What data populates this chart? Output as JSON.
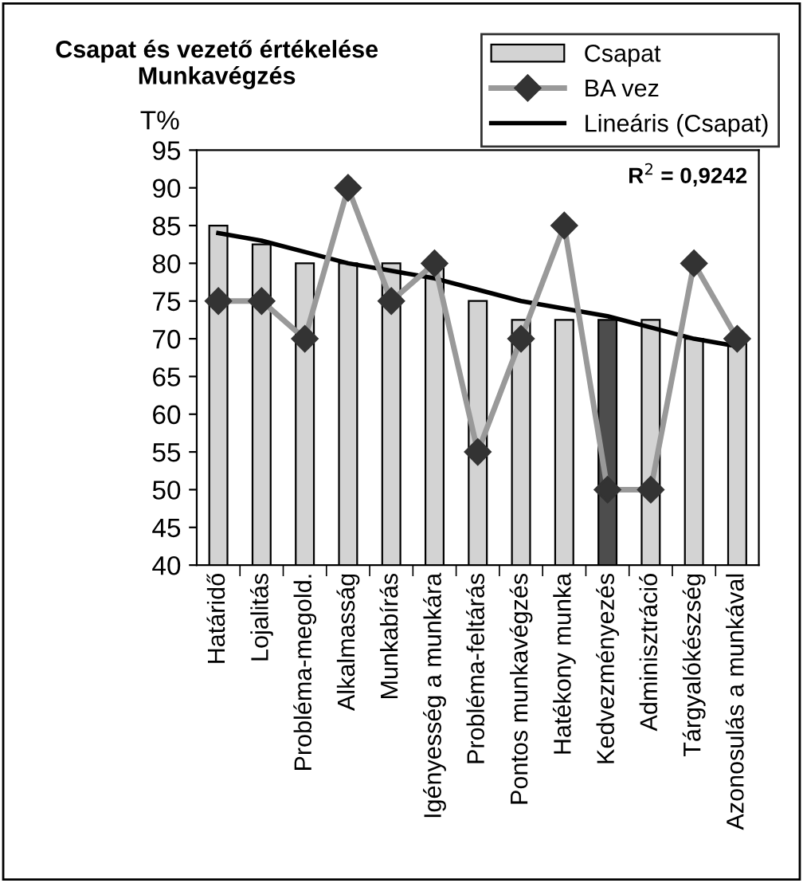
{
  "chart_data": {
    "type": "bar",
    "title": "Csapat és vezető értékelése\nMunkavégzés",
    "ylabel": "T%",
    "categories": [
      "Határidő",
      "Lojalitás",
      "Probléma-megold.",
      "Alkalmasság",
      "Munkabírás",
      "Igényesség a munkára",
      "Probléma-feltárás",
      "Pontos munkavégzés",
      "Hatékony munka",
      "Kedvezményezés",
      "Adminisztráció",
      "Tárgyalókészség",
      "Azonosulás a munkával"
    ],
    "series": [
      {
        "name": "Csapat",
        "colors": [
          "#d3d3d3",
          "#d3d3d3",
          "#d3d3d3",
          "#d3d3d3",
          "#d3d3d3",
          "#d3d3d3",
          "#d3d3d3",
          "#d3d3d3",
          "#d3d3d3",
          "#4d4d4d",
          "#d3d3d3",
          "#d3d3d3",
          "#d3d3d3"
        ],
        "color": "#d3d3d3",
        "values": [
          85,
          82.5,
          80,
          80,
          80,
          80,
          75,
          72.5,
          72.5,
          72.5,
          72.5,
          70,
          70
        ]
      },
      {
        "name": "BA vez",
        "type": "line",
        "color": "#999999",
        "marker": "diamond",
        "values": [
          75,
          75,
          70,
          90,
          75,
          80,
          55,
          70,
          85,
          50,
          50,
          80,
          70
        ]
      },
      {
        "name": "Lineáris (Csapat)",
        "type": "line",
        "color": "#000000",
        "marker": "none",
        "values": [
          84,
          83,
          81.5,
          80,
          79,
          78,
          76.5,
          75,
          74,
          73,
          71.5,
          70,
          69
        ]
      }
    ],
    "ylim": [
      40,
      95
    ],
    "yticks": [
      40,
      45,
      50,
      55,
      60,
      65,
      70,
      75,
      80,
      85,
      90,
      95
    ],
    "grid": false,
    "legend": "top right",
    "annotations": [
      {
        "text": "R$^{2}$ = 0,9242"
      }
    ]
  }
}
